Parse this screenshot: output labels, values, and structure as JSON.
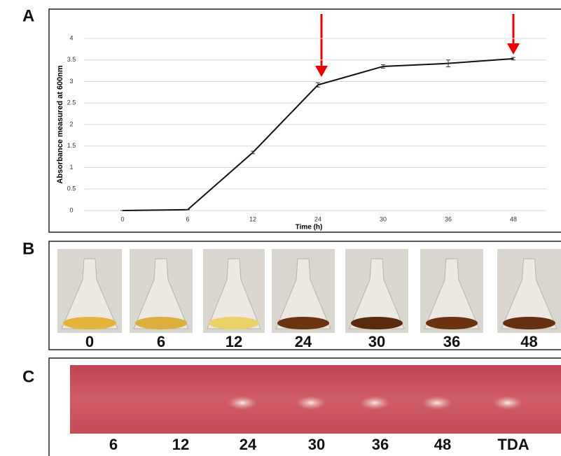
{
  "panel_labels": [
    "A",
    "B",
    "C"
  ],
  "chart_data": {
    "type": "line",
    "y_label": "Absorbance measured at 600nm",
    "x_label": "Time (h)",
    "categories": [
      "0",
      "6",
      "12",
      "24",
      "30",
      "36",
      "48"
    ],
    "series": [
      {
        "color": "#111111",
        "values": [
          0,
          0.02,
          1.35,
          2.92,
          3.35,
          3.42,
          3.53
        ],
        "errors": [
          0,
          0,
          0.03,
          0.05,
          0.04,
          0.08,
          0.03
        ]
      }
    ],
    "ylim": [
      0,
      4
    ],
    "yticks": [
      0,
      0.5,
      1,
      1.5,
      2,
      2.5,
      3,
      3.5,
      4
    ],
    "grid": true
  },
  "flask_labels": [
    "0",
    "6",
    "12",
    "24",
    "30",
    "36",
    "48"
  ],
  "gel_labels": [
    "6",
    "12",
    "24",
    "30",
    "36",
    "48",
    "TDA"
  ]
}
